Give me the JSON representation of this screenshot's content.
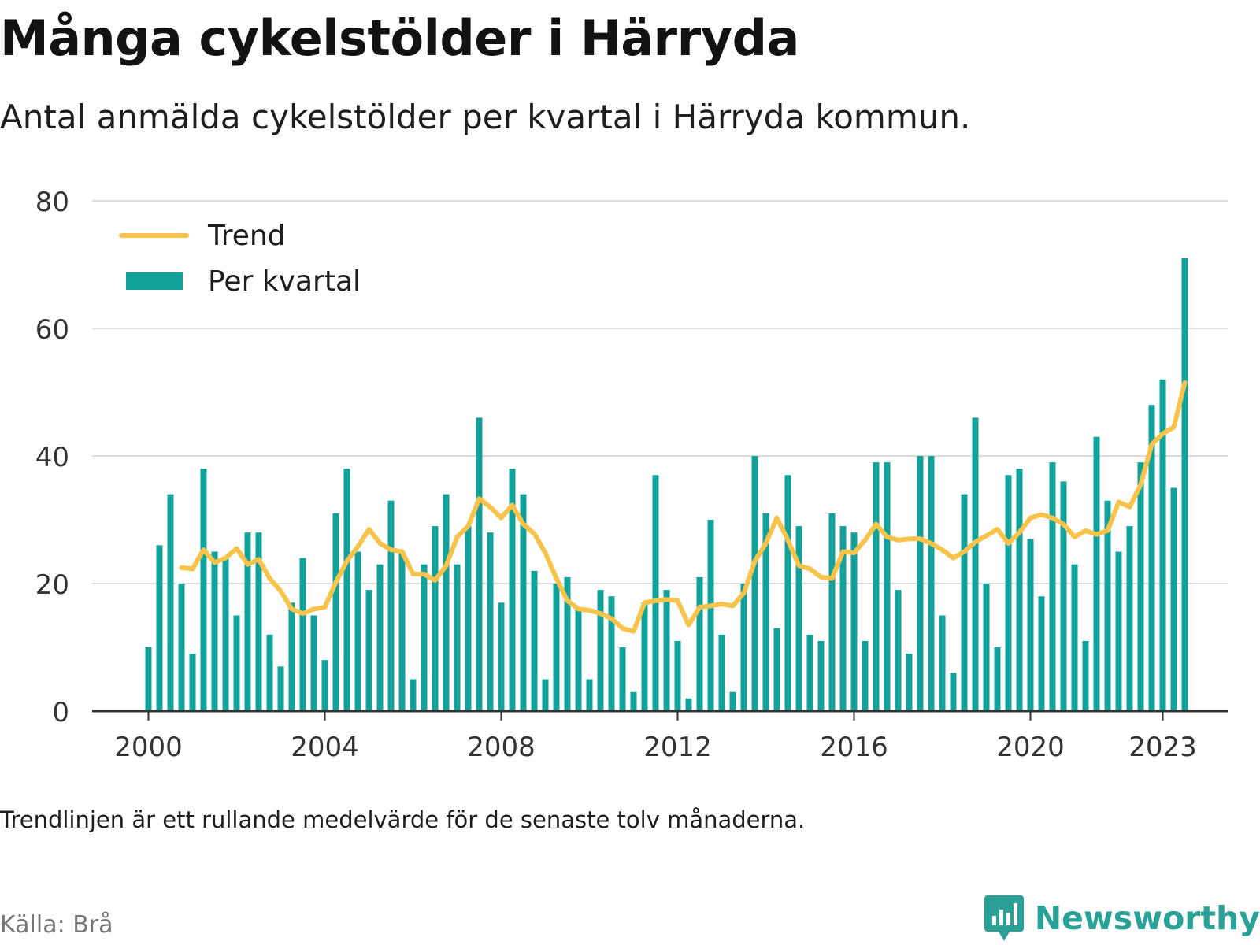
{
  "title": "Många cykelstölder i Härryda",
  "subtitle": "Antal anmälda cykelstölder per kvartal i Härryda kommun.",
  "note": "Trendlinjen är ett rullande medelvärde för de senaste tolv månaderna.",
  "source": "Källa: Brå",
  "brand": {
    "name": "Newsworthy",
    "icon": "bar-chart-speech-bubble-icon",
    "color": "#2aa197"
  },
  "colors": {
    "bar": "#13a29b",
    "trend": "#f7c34a",
    "axis": "#333333",
    "grid": "#dddddd"
  },
  "chart_data": {
    "type": "bar",
    "ylim": [
      0,
      80
    ],
    "yticks": [
      0,
      20,
      40,
      60,
      80
    ],
    "xticks": [
      {
        "label": "2000",
        "year": 2000
      },
      {
        "label": "2004",
        "year": 2004
      },
      {
        "label": "2008",
        "year": 2008
      },
      {
        "label": "2012",
        "year": 2012
      },
      {
        "label": "2016",
        "year": 2016
      },
      {
        "label": "2020",
        "year": 2020
      },
      {
        "label": "2023",
        "year": 2023
      }
    ],
    "legend_position": "top-left",
    "grid": true,
    "start_quarter": "2000 Q1",
    "series": [
      {
        "name": "Per kvartal",
        "type": "bar",
        "values": [
          10,
          26,
          34,
          20,
          9,
          38,
          25,
          24,
          15,
          28,
          28,
          12,
          7,
          17,
          24,
          15,
          8,
          31,
          38,
          25,
          19,
          23,
          33,
          25,
          5,
          23,
          29,
          34,
          23,
          29,
          46,
          28,
          17,
          38,
          34,
          22,
          5,
          20,
          21,
          16,
          5,
          19,
          18,
          10,
          3,
          17,
          37,
          19,
          11,
          2,
          21,
          30,
          12,
          3,
          20,
          40,
          31,
          13,
          37,
          29,
          12,
          11,
          31,
          29,
          28,
          11,
          39,
          39,
          19,
          9,
          40,
          40,
          15,
          6,
          34,
          46,
          20,
          10,
          37,
          38,
          27,
          18,
          39,
          36,
          23,
          11,
          43,
          33,
          25,
          29,
          39,
          48,
          52,
          35,
          71
        ]
      },
      {
        "name": "Trend",
        "type": "line",
        "values": [
          null,
          null,
          null,
          22.5,
          22.3,
          25.3,
          23.3,
          24,
          25.5,
          23,
          23.8,
          20.8,
          18.8,
          16,
          15.3,
          16,
          16.3,
          20.2,
          23.5,
          25.8,
          28.5,
          26.3,
          25.3,
          25,
          21.5,
          21.5,
          20.5,
          22.8,
          27.3,
          29,
          33.3,
          32,
          30.3,
          32.3,
          29.3,
          27.8,
          24.8,
          20.8,
          17.3,
          16,
          15.8,
          15.3,
          14.5,
          13,
          12.5,
          17,
          17.3,
          17.5,
          17.3,
          13.5,
          16.3,
          16.5,
          16.8,
          16.5,
          18.5,
          23.5,
          26.3,
          30.3,
          26.8,
          22.8,
          22.3,
          21,
          20.8,
          25,
          24.8,
          26.8,
          29.3,
          27.3,
          26.8,
          27,
          27,
          26.3,
          25.3,
          24,
          25,
          26.5,
          27.5,
          28.5,
          26.3,
          28,
          30.3,
          30.8,
          30.3,
          29.3,
          27.3,
          28.3,
          27.7,
          28.3,
          32.8,
          32,
          35.5,
          41.8,
          43.5,
          44.5,
          51.5
        ]
      }
    ]
  }
}
